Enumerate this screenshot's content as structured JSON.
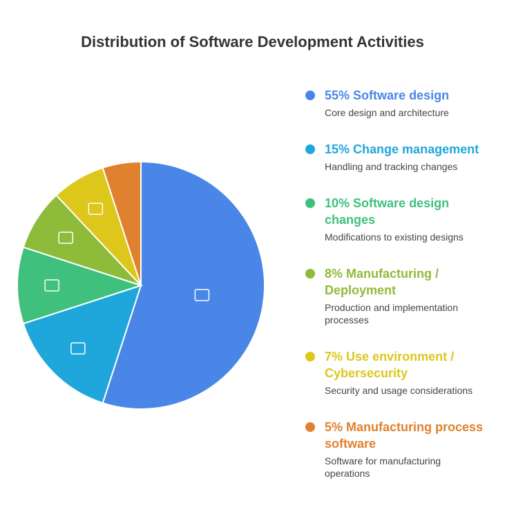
{
  "chart_data": {
    "type": "pie",
    "title": "Distribution of Software Development Activities",
    "categories": [
      "Software design",
      "Change management",
      "Software design changes",
      "Manufacturing / Deployment",
      "Use environment / Cybersecurity",
      "Manufacturing process software"
    ],
    "values": [
      55,
      15,
      10,
      8,
      7,
      5
    ],
    "value_labels": [
      "55%",
      "15%",
      "10%",
      "8%",
      "7%",
      "5%"
    ],
    "descriptions": [
      "Core design and architecture",
      "Handling and tracking changes",
      "Modifications to existing designs",
      "Production and implementation processes",
      "Security and usage considerations",
      "Software for manufacturing operations"
    ],
    "colors": [
      "#4a86e8",
      "#1fa7dc",
      "#3fc07d",
      "#8fbb3a",
      "#ddc71a",
      "#e0812f"
    ]
  }
}
